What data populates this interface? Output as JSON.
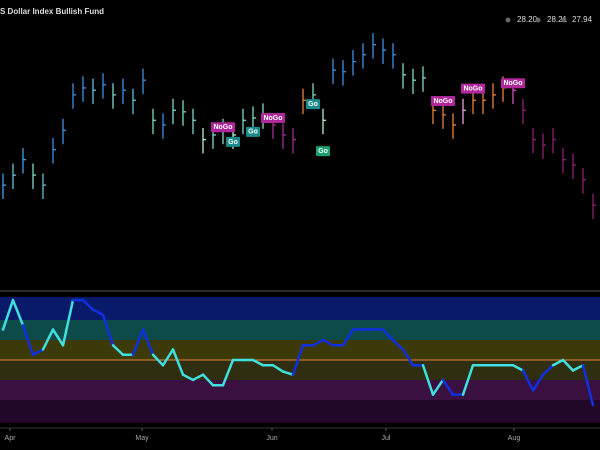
{
  "chart_data": [
    {
      "type": "ohlc",
      "title": "S Dollar Index Bullish Fund",
      "header_values": [
        "28.20",
        "28.21",
        "27.94"
      ],
      "x": [
        0,
        1,
        2,
        3,
        4,
        5,
        6,
        7,
        8,
        9,
        10,
        11,
        12,
        13,
        14,
        15,
        16,
        17,
        18,
        19,
        20,
        21,
        22,
        23,
        24,
        25,
        26,
        27,
        28,
        29,
        30,
        31,
        32,
        33,
        34,
        35,
        36,
        37,
        38,
        39,
        40,
        41,
        42,
        43,
        44,
        45,
        46,
        47,
        48,
        49,
        50,
        51,
        52,
        53,
        54,
        55,
        56,
        57,
        58,
        59
      ],
      "high": [
        28.88,
        29.01,
        29.21,
        29.01,
        28.88,
        29.34,
        29.59,
        30.05,
        30.14,
        30.11,
        30.18,
        30.05,
        30.11,
        29.98,
        30.24,
        29.72,
        29.66,
        29.85,
        29.83,
        29.72,
        29.47,
        29.53,
        29.59,
        29.53,
        29.72,
        29.75,
        29.79,
        29.66,
        29.53,
        29.47,
        29.98,
        30.05,
        29.72,
        30.37,
        30.35,
        30.48,
        30.57,
        30.7,
        30.63,
        30.57,
        30.31,
        30.24,
        30.27,
        29.85,
        29.79,
        29.66,
        29.85,
        29.98,
        29.98,
        30.05,
        30.14,
        30.11,
        29.85,
        29.47,
        29.4,
        29.47,
        29.21,
        29.14,
        28.95,
        28.62
      ],
      "low": [
        28.55,
        28.68,
        28.88,
        28.68,
        28.55,
        29.01,
        29.26,
        29.72,
        29.81,
        29.78,
        29.85,
        29.72,
        29.78,
        29.65,
        29.91,
        29.39,
        29.33,
        29.52,
        29.5,
        29.39,
        29.14,
        29.2,
        29.26,
        29.2,
        29.39,
        29.42,
        29.46,
        29.33,
        29.2,
        29.14,
        29.65,
        29.72,
        29.39,
        30.04,
        30.02,
        30.15,
        30.24,
        30.37,
        30.3,
        30.24,
        29.98,
        29.91,
        29.94,
        29.52,
        29.46,
        29.33,
        29.52,
        29.65,
        29.65,
        29.72,
        29.81,
        29.78,
        29.52,
        29.14,
        29.07,
        29.14,
        28.88,
        28.81,
        28.62,
        28.29
      ],
      "close": [
        28.73,
        28.86,
        29.06,
        28.86,
        28.73,
        29.19,
        29.44,
        29.9,
        29.99,
        29.96,
        30.03,
        29.9,
        29.96,
        29.83,
        30.09,
        29.57,
        29.51,
        29.7,
        29.68,
        29.57,
        29.32,
        29.38,
        29.44,
        29.38,
        29.57,
        29.6,
        29.64,
        29.51,
        29.38,
        29.32,
        29.83,
        29.9,
        29.57,
        30.22,
        30.2,
        30.33,
        30.42,
        30.55,
        30.48,
        30.42,
        30.16,
        30.09,
        30.12,
        29.7,
        29.64,
        29.51,
        29.7,
        29.83,
        29.83,
        29.9,
        29.99,
        29.96,
        29.7,
        29.32,
        29.25,
        29.32,
        29.06,
        28.99,
        28.8,
        28.47
      ],
      "colors": [
        "#3fa0e0",
        "#62c3d8",
        "#3fa0e0",
        "#7fd8c8",
        "#62c3d8",
        "#3f8fe0",
        "#3f8fe0",
        "#3f8fe0",
        "#3f8fe0",
        "#62c3d8",
        "#3f8fe0",
        "#7fd8c8",
        "#3f8fe0",
        "#62c3d8",
        "#3f8fe0",
        "#7fd8c8",
        "#3f8fe0",
        "#7fd8c8",
        "#7fd8c8",
        "#7fd8c8",
        "#b5f0d0",
        "#7fd8c8",
        "#7fd8c8",
        "#b5f0d0",
        "#7fd8c8",
        "#7fd8c8",
        "#7fd8c8",
        "#a03090",
        "#a03090",
        "#a03090",
        "#e8833a",
        "#7fd8c8",
        "#b5f0d0",
        "#3f8fe0",
        "#3f8fe0",
        "#3f8fe0",
        "#3f8fe0",
        "#3f8fe0",
        "#3f8fe0",
        "#3f8fe0",
        "#7fd8c8",
        "#7fd8c8",
        "#7fd8c8",
        "#e8833a",
        "#e8833a",
        "#e8833a",
        "#e8a0d8",
        "#e8833a",
        "#e8833a",
        "#e8833a",
        "#e8833a",
        "#d050c0",
        "#8a2070",
        "#8a2070",
        "#8a2070",
        "#8a2070",
        "#8a2070",
        "#8a2070",
        "#8a2070",
        "#8a2070"
      ],
      "annotations": [
        {
          "text": "NoGo",
          "x": 22,
          "y": 29.48,
          "color": "#b0279c"
        },
        {
          "text": "Go",
          "x": 23,
          "y": 29.29,
          "color": "#1b8a8a"
        },
        {
          "text": "Go",
          "x": 25,
          "y": 29.42,
          "color": "#1b8a8a"
        },
        {
          "text": "NoGo",
          "x": 27,
          "y": 29.6,
          "color": "#b0279c"
        },
        {
          "text": "Go",
          "x": 31,
          "y": 29.78,
          "color": "#1b8a8a"
        },
        {
          "text": "Go",
          "x": 32,
          "y": 29.17,
          "color": "#1aa070"
        },
        {
          "text": "NoGo",
          "x": 44,
          "y": 29.82,
          "color": "#b0279c"
        },
        {
          "text": "NoGo",
          "x": 47,
          "y": 29.98,
          "color": "#b0279c"
        },
        {
          "text": "NoGo",
          "x": 51,
          "y": 30.05,
          "color": "#b0279c"
        }
      ],
      "xlim": [
        -0.3,
        59.7
      ],
      "ylim": [
        27.5,
        31.0
      ]
    },
    {
      "type": "line",
      "x": [
        0,
        1,
        2,
        3,
        4,
        5,
        6,
        7,
        8,
        9,
        10,
        11,
        12,
        13,
        14,
        15,
        16,
        17,
        18,
        19,
        20,
        21,
        22,
        23,
        24,
        25,
        26,
        27,
        28,
        29,
        30,
        31,
        32,
        33,
        34,
        35,
        36,
        37,
        38,
        39,
        40,
        41,
        42,
        43,
        44,
        45,
        46,
        47,
        48,
        49,
        50,
        51,
        52,
        53,
        54,
        55,
        56,
        57,
        58,
        59
      ],
      "values": [
        2.9,
        5.7,
        3.3,
        0.5,
        1.0,
        2.9,
        1.4,
        5.7,
        5.7,
        4.8,
        4.3,
        1.4,
        0.5,
        0.5,
        2.9,
        0.5,
        -0.5,
        1.0,
        -1.4,
        -1.9,
        -1.4,
        -2.4,
        -2.4,
        0,
        0,
        0,
        -0.5,
        -0.5,
        -1.1,
        -1.4,
        1.4,
        1.4,
        1.9,
        1.4,
        1.4,
        2.9,
        2.9,
        2.9,
        2.9,
        1.9,
        1.0,
        -0.5,
        -0.5,
        -3.3,
        -1.9,
        -3.3,
        -3.3,
        -0.5,
        -0.5,
        -0.5,
        -0.5,
        -0.5,
        -1.0,
        -2.9,
        -1.4,
        -0.5,
        0,
        -1.0,
        -0.5,
        -4.3
      ],
      "colors": [
        "#40e0e0",
        "#40e0e0",
        "#40e0e0",
        "#1030e0",
        "#1030e0",
        "#40e0e0",
        "#40e0e0",
        "#40e0e0",
        "#1030e0",
        "#1030e0",
        "#1030e0",
        "#1030e0",
        "#40e0e0",
        "#40e0e0",
        "#1030e0",
        "#1030e0",
        "#40e0e0",
        "#40e0e0",
        "#40e0e0",
        "#40e0e0",
        "#40e0e0",
        "#40e0e0",
        "#40e0e0",
        "#40e0e0",
        "#40e0e0",
        "#40e0e0",
        "#40e0e0",
        "#40e0e0",
        "#40e0e0",
        "#40e0e0",
        "#1030e0",
        "#1030e0",
        "#1030e0",
        "#1030e0",
        "#1030e0",
        "#1030e0",
        "#1030e0",
        "#1030e0",
        "#1030e0",
        "#1030e0",
        "#1030e0",
        "#1030e0",
        "#1030e0",
        "#40e0e0",
        "#40e0e0",
        "#1030e0",
        "#1030e0",
        "#40e0e0",
        "#40e0e0",
        "#40e0e0",
        "#40e0e0",
        "#40e0e0",
        "#40e0e0",
        "#1030e0",
        "#1030e0",
        "#1030e0",
        "#40e0e0",
        "#40e0e0",
        "#40e0e0",
        "#1030e0"
      ],
      "xlim": [
        -0.3,
        59.7
      ],
      "ylim": [
        -6,
        6
      ],
      "xticks": [
        {
          "value": 0.7,
          "label": "Apr"
        },
        {
          "value": 13.9,
          "label": "May"
        },
        {
          "value": 26.9,
          "label": "Jun"
        },
        {
          "value": 38.3,
          "label": "Jul"
        },
        {
          "value": 51.1,
          "label": "Aug"
        }
      ]
    }
  ]
}
